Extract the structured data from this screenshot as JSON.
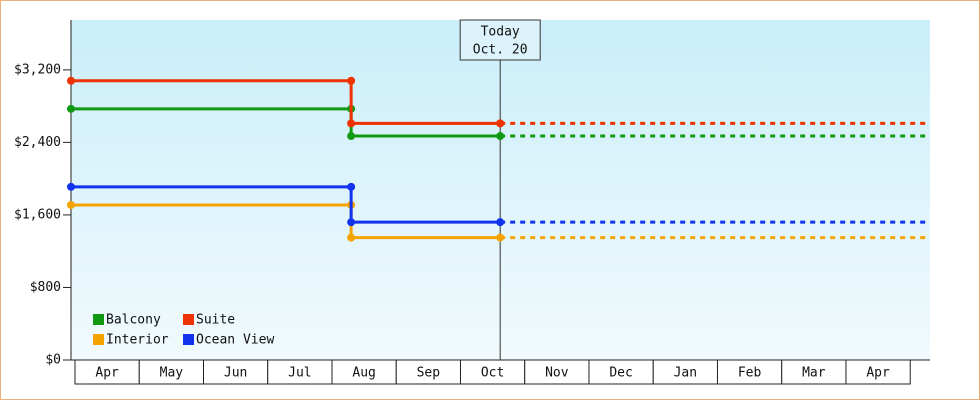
{
  "chart_data": {
    "type": "step",
    "today_label": "Today",
    "today_date": "Oct. 20",
    "today_x": 6.68,
    "categories": [
      "Apr",
      "May",
      "Jun",
      "Jul",
      "Aug",
      "Sep",
      "Oct",
      "Nov",
      "Dec",
      "Jan",
      "Feb",
      "Mar",
      "Apr"
    ],
    "xlim": [
      0,
      13.37
    ],
    "ylim": [
      0,
      3750
    ],
    "yticks": [
      {
        "value": 0,
        "label": "$0"
      },
      {
        "value": 800,
        "label": "$800"
      },
      {
        "value": 1600,
        "label": "$1,600"
      },
      {
        "value": 2400,
        "label": "$2,400"
      },
      {
        "value": 3200,
        "label": "$3,200"
      }
    ],
    "series": [
      {
        "name": "Balcony",
        "color": "#119911",
        "x": [
          0,
          4.36,
          4.36,
          6.68
        ],
        "values": [
          2770,
          2770,
          2470,
          2470
        ]
      },
      {
        "name": "Suite",
        "color": "#ee3300",
        "x": [
          0,
          4.36,
          4.36,
          6.68
        ],
        "values": [
          3080,
          3080,
          2610,
          2610
        ]
      },
      {
        "name": "Interior",
        "color": "#f5a300",
        "x": [
          0,
          4.36,
          4.36,
          6.68
        ],
        "values": [
          1710,
          1710,
          1350,
          1350
        ]
      },
      {
        "name": "Ocean View",
        "color": "#1133ee",
        "x": [
          0,
          4.36,
          4.36,
          6.68
        ],
        "values": [
          1910,
          1910,
          1520,
          1520
        ]
      }
    ]
  }
}
